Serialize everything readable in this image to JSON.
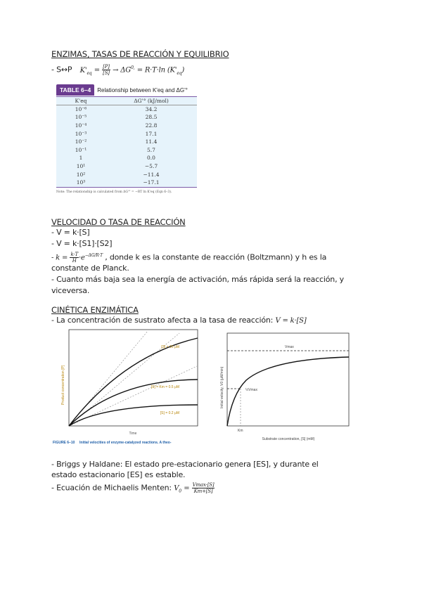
{
  "section1": {
    "title": "ENZIMAS, TASAS DE REACCIÓN Y EQUILIBRIO",
    "line_prefix": "- S↔P",
    "keq": "K'",
    "eq_sub": "eq",
    "frac_num": "[P]",
    "frac_den": "[S]",
    "arrow": "→ ΔG",
    "sup": "0,",
    "rhs": "= R·T·ln (K'",
    "rhs_end": ")"
  },
  "table": {
    "label": "TABLE 6–4",
    "caption": "Relationship between K'eq and ΔG'°",
    "headers": [
      "K'eq",
      "ΔG'° (kJ/mol)"
    ],
    "rows": [
      [
        "10⁻⁶",
        "34.2"
      ],
      [
        "10⁻⁵",
        "28.5"
      ],
      [
        "10⁻⁴",
        "22.8"
      ],
      [
        "10⁻³",
        "17.1"
      ],
      [
        "10⁻²",
        "11.4"
      ],
      [
        "10⁻¹",
        "5.7"
      ],
      [
        "1",
        "0.0"
      ],
      [
        "10¹",
        "−5.7"
      ],
      [
        "10²",
        "−11.4"
      ],
      [
        "10³",
        "−17.1"
      ]
    ],
    "note": "Note: The relationship is calculated from ΔG'° = −RT ln K'eq (Eqn 6–3)."
  },
  "section2": {
    "title": "VELOCIDAD O TASA DE REACCIÓN",
    "l1": "- V = k·[S]",
    "l2": "- V = k·[S1]·[S2]",
    "l3_pre": "- k =",
    "l3_num": "k·T",
    "l3_den": "H",
    "l3_exp": "·e",
    "l3_sup": "−ΔG/R·T",
    "l3_text": ", donde k es la constante de reacción (Boltzmann) y h es la",
    "l4": "constante de Planck.",
    "l5": "- Cuanto más baja sea la energía de activación, más rápida será la reacción, y",
    "l6": "viceversa."
  },
  "section3": {
    "title": "CINÉTICA ENZIMÁTICA",
    "l1_text": "- La concentración de sustrato afecta a la tasa de reacción:",
    "l1_math": "V = k·[S]",
    "fig1": {
      "ylabel": "Product concentration [P]",
      "xlabel": "Time",
      "c1": "[S] = 10 μM",
      "c2": "[S] = Km = 0.5 μM",
      "c3": "[S] = 0.2 μM",
      "caption_label": "FIGURE 6–10",
      "caption": "Initial velocities of enzyme-catalyzed reactions. A theo-"
    },
    "fig2": {
      "ylabel": "Initial velocity, V0 (μM/min)",
      "xlabel": "Substrate concentration, [S] (mM)",
      "vmax": "Vmax",
      "half": "½Vmax",
      "km": "Km"
    },
    "b1": "- Briggs y Haldane: El estado pre-estacionario genera [ES], y durante el",
    "b2": "estado estacionario [ES] es estable.",
    "b3": "- Ecuación de Michaelis Menten:",
    "mm_lhs": "V",
    "mm_sub": "0",
    "mm_num": "Vmax·[S]",
    "mm_den": "Km+[S]"
  },
  "colors": {
    "table_tab": "#6a3b8f",
    "table_bg": "#e6f3fb",
    "caption_blue": "#1f5fa8",
    "label_orange": "#b8860b"
  }
}
